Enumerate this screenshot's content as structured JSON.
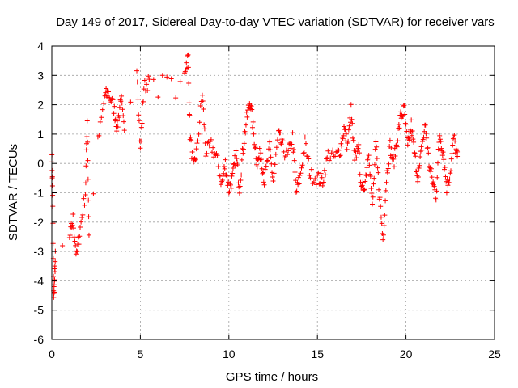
{
  "chart_data": {
    "type": "scatter",
    "title": "Day 149 of 2017, Sidereal Day-to-day VTEC variation (SDTVAR) for receiver vars",
    "xlabel": "GPS time / hours",
    "ylabel": "SDTVAR / TECUs",
    "xlim": [
      0,
      25
    ],
    "ylim": [
      -6,
      4
    ],
    "x_ticks": [
      "0",
      "5",
      "10",
      "15",
      "20",
      "25"
    ],
    "y_ticks": [
      "-6",
      "-5",
      "-4",
      "-3",
      "-2",
      "-1",
      "0",
      "1",
      "2",
      "3",
      "4"
    ],
    "grid": true,
    "marker": "+",
    "color": "#ff0000",
    "series": [
      {
        "name": "SDTVAR",
        "anchors": [
          [
            0.0,
            0.3
          ],
          [
            0.05,
            -1.0
          ],
          [
            0.1,
            -4.5
          ],
          [
            0.15,
            -4.1
          ],
          [
            0.2,
            -3.2
          ],
          [
            1.0,
            -2.6
          ],
          [
            1.2,
            -1.9
          ],
          [
            1.4,
            -3.2
          ],
          [
            1.6,
            -2.2
          ],
          [
            1.9,
            -1.0
          ],
          [
            2.0,
            1.5
          ],
          [
            2.1,
            -2.5
          ],
          [
            2.6,
            0.7
          ],
          [
            3.0,
            2.3
          ],
          [
            3.2,
            2.4
          ],
          [
            3.5,
            1.9
          ],
          [
            3.7,
            1.2
          ],
          [
            3.9,
            2.3
          ],
          [
            4.1,
            1.0
          ],
          [
            4.8,
            3.4
          ],
          [
            5.0,
            0.4
          ],
          [
            5.2,
            2.6
          ],
          [
            5.5,
            2.8
          ],
          [
            6.0,
            2.5
          ],
          [
            6.5,
            3.1
          ],
          [
            7.0,
            2.2
          ],
          [
            7.5,
            3.2
          ],
          [
            7.7,
            3.6
          ],
          [
            7.8,
            1.0
          ],
          [
            8.0,
            -0.2
          ],
          [
            8.2,
            0.5
          ],
          [
            8.5,
            2.4
          ],
          [
            8.7,
            0.4
          ],
          [
            9.0,
            0.6
          ],
          [
            9.3,
            0.2
          ],
          [
            9.6,
            -0.7
          ],
          [
            9.8,
            0.0
          ],
          [
            10.0,
            -0.9
          ],
          [
            10.2,
            -0.5
          ],
          [
            10.4,
            0.3
          ],
          [
            10.6,
            -0.8
          ],
          [
            10.8,
            0.5
          ],
          [
            11.0,
            1.5
          ],
          [
            11.2,
            2.2
          ],
          [
            11.4,
            1.0
          ],
          [
            11.6,
            0.0
          ],
          [
            11.8,
            0.4
          ],
          [
            12.0,
            -0.6
          ],
          [
            12.3,
            0.5
          ],
          [
            12.5,
            -0.6
          ],
          [
            12.8,
            1.0
          ],
          [
            13.0,
            0.6
          ],
          [
            13.3,
            0.2
          ],
          [
            13.6,
            0.9
          ],
          [
            13.8,
            -1.0
          ],
          [
            14.0,
            -0.5
          ],
          [
            14.3,
            0.7
          ],
          [
            14.6,
            -0.4
          ],
          [
            15.0,
            -0.5
          ],
          [
            15.3,
            -0.6
          ],
          [
            15.6,
            0.3
          ],
          [
            16.0,
            0.2
          ],
          [
            16.3,
            0.5
          ],
          [
            16.5,
            1.2
          ],
          [
            16.7,
            0.6
          ],
          [
            16.9,
            1.8
          ],
          [
            17.1,
            0.0
          ],
          [
            17.3,
            0.7
          ],
          [
            17.5,
            -1.0
          ],
          [
            17.7,
            -0.6
          ],
          [
            17.9,
            0.5
          ],
          [
            18.1,
            -1.5
          ],
          [
            18.3,
            0.6
          ],
          [
            18.5,
            -1.0
          ],
          [
            18.7,
            -2.6
          ],
          [
            18.9,
            -0.5
          ],
          [
            19.1,
            0.6
          ],
          [
            19.3,
            0.0
          ],
          [
            19.5,
            0.8
          ],
          [
            19.7,
            1.6
          ],
          [
            19.9,
            1.8
          ],
          [
            20.1,
            0.5
          ],
          [
            20.3,
            1.3
          ],
          [
            20.5,
            0.2
          ],
          [
            20.7,
            -0.5
          ],
          [
            20.9,
            0.6
          ],
          [
            21.1,
            1.3
          ],
          [
            21.3,
            0.0
          ],
          [
            21.5,
            -0.6
          ],
          [
            21.7,
            -1.1
          ],
          [
            21.9,
            1.0
          ],
          [
            22.1,
            0.4
          ],
          [
            22.3,
            -0.8
          ],
          [
            22.5,
            -0.3
          ],
          [
            22.7,
            0.9
          ],
          [
            22.9,
            0.2
          ]
        ]
      }
    ]
  }
}
